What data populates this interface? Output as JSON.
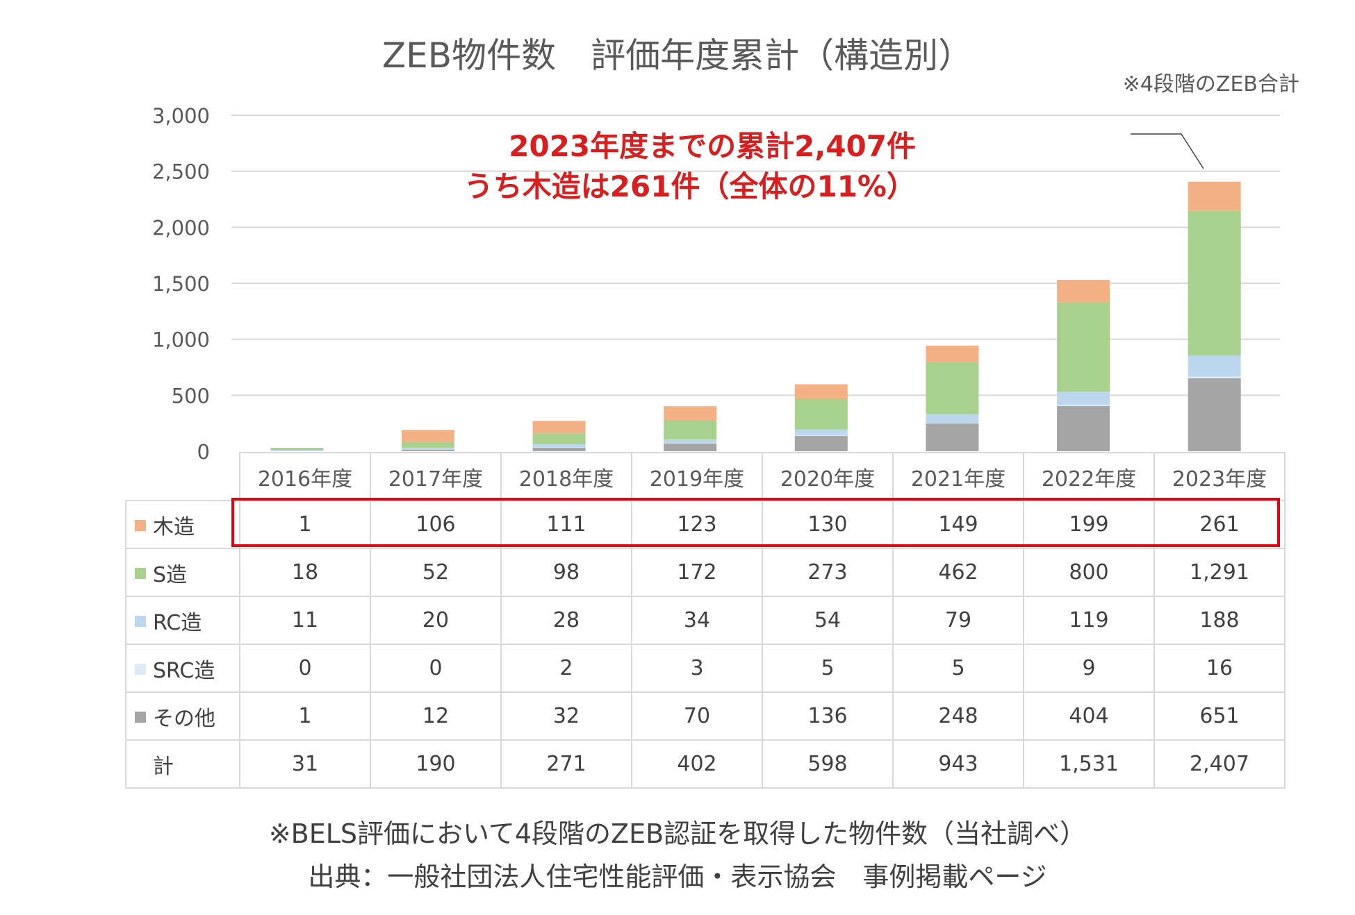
{
  "title": "ZEB物件数　評価年度累計（構造別）",
  "note": "※4段階のZEB合計",
  "annotation": {
    "line1": "2023年度までの累計2,407件",
    "line2": "うち木造は261件（全体の11%）",
    "color": "#d81e1e"
  },
  "footnote1": "※BELS評価において4段階のZEB認証を取得した物件数（当社調べ）",
  "footnote2": "出典：一般社団法人住宅性能評価・表示協会　事例掲載ページ",
  "chart_data": {
    "type": "bar",
    "stacked": true,
    "categories": [
      "2016年度",
      "2017年度",
      "2018年度",
      "2019年度",
      "2020年度",
      "2021年度",
      "2022年度",
      "2023年度"
    ],
    "series": [
      {
        "name": "その他",
        "color": "#a5a5a5",
        "values": [
          1,
          12,
          32,
          70,
          136,
          248,
          404,
          651
        ]
      },
      {
        "name": "SRC造",
        "color": "#deebf7",
        "values": [
          0,
          0,
          2,
          3,
          5,
          5,
          9,
          16
        ]
      },
      {
        "name": "RC造",
        "color": "#bdd7ee",
        "values": [
          11,
          20,
          28,
          34,
          54,
          79,
          119,
          188
        ]
      },
      {
        "name": "S造",
        "color": "#a9d18e",
        "values": [
          18,
          52,
          98,
          172,
          273,
          462,
          800,
          1291
        ]
      },
      {
        "name": "木造",
        "color": "#f4b183",
        "values": [
          1,
          106,
          111,
          123,
          130,
          149,
          199,
          261
        ]
      }
    ],
    "yticks": [
      "0",
      "500",
      "1,000",
      "1,500",
      "2,000",
      "2,500",
      "3,000"
    ],
    "ylim": [
      0,
      3000
    ],
    "grid": true
  },
  "table": {
    "rows": [
      {
        "label": "木造",
        "color": "#f4b183",
        "cells": [
          "1",
          "106",
          "111",
          "123",
          "130",
          "149",
          "199",
          "261"
        ]
      },
      {
        "label": "S造",
        "color": "#a9d18e",
        "cells": [
          "18",
          "52",
          "98",
          "172",
          "273",
          "462",
          "800",
          "1,291"
        ]
      },
      {
        "label": "RC造",
        "color": "#bdd7ee",
        "cells": [
          "11",
          "20",
          "28",
          "34",
          "54",
          "79",
          "119",
          "188"
        ]
      },
      {
        "label": "SRC造",
        "color": "#deebf7",
        "cells": [
          "0",
          "0",
          "2",
          "3",
          "5",
          "5",
          "9",
          "16"
        ]
      },
      {
        "label": "その他",
        "color": "#a5a5a5",
        "cells": [
          "1",
          "12",
          "32",
          "70",
          "136",
          "248",
          "404",
          "651"
        ]
      },
      {
        "label": "計",
        "color": "",
        "cells": [
          "31",
          "190",
          "271",
          "402",
          "598",
          "943",
          "1,531",
          "2,407"
        ]
      }
    ]
  }
}
